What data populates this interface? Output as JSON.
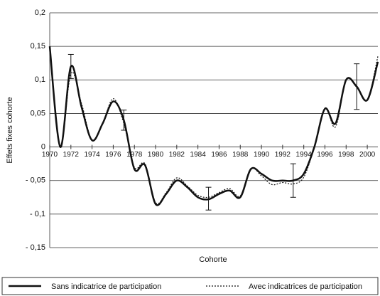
{
  "chart_data": {
    "type": "line",
    "y_label": "Effets fixes cohorte",
    "x_label": "Cohorte",
    "xlim": [
      1970,
      2001
    ],
    "xticks": [
      1970,
      1972,
      1974,
      1976,
      1978,
      1980,
      1982,
      1984,
      1986,
      1988,
      1990,
      1992,
      1994,
      1996,
      1998,
      2000
    ],
    "ylim": [
      -0.15,
      0.2
    ],
    "yticks": [
      {
        "value": -0.15,
        "label": "- 0,15"
      },
      {
        "value": -0.1,
        "label": "- 0,1"
      },
      {
        "value": -0.05,
        "label": "- 0,05"
      },
      0,
      {
        "value": 0.05,
        "label": "0,05"
      },
      {
        "value": 0.1,
        "label": "0,1"
      },
      {
        "value": 0.15,
        "label": "0,15"
      },
      {
        "value": 0.2,
        "label": "0,2"
      }
    ],
    "grid": true,
    "legend_position": "bottom",
    "x": [
      1970,
      1971,
      1972,
      1973,
      1974,
      1975,
      1976,
      1977,
      1978,
      1979,
      1980,
      1981,
      1982,
      1983,
      1984,
      1985,
      1986,
      1987,
      1988,
      1989,
      1990,
      1991,
      1992,
      1993,
      1994,
      1995,
      1996,
      1997,
      1998,
      1999,
      2000,
      2001
    ],
    "series": [
      {
        "name": "Sans indicatrice de participation",
        "color": "#111111",
        "dash": "solid",
        "values": [
          0.15,
          0.0,
          0.12,
          0.06,
          0.01,
          0.035,
          0.068,
          0.04,
          -0.033,
          -0.027,
          -0.085,
          -0.07,
          -0.05,
          -0.06,
          -0.075,
          -0.078,
          -0.07,
          -0.065,
          -0.075,
          -0.033,
          -0.04,
          -0.05,
          -0.05,
          -0.05,
          -0.04,
          0.0,
          0.057,
          0.035,
          0.1,
          0.09,
          0.07,
          0.127
        ]
      },
      {
        "name": "Avec indicatrices de participation",
        "color": "#111111",
        "dash": "dotted",
        "values": [
          0.15,
          0.0,
          0.11,
          0.065,
          0.01,
          0.035,
          0.072,
          0.035,
          -0.03,
          -0.025,
          -0.083,
          -0.068,
          -0.046,
          -0.058,
          -0.072,
          -0.075,
          -0.068,
          -0.062,
          -0.073,
          -0.032,
          -0.043,
          -0.056,
          -0.053,
          -0.055,
          -0.045,
          0.0,
          0.058,
          0.03,
          0.1,
          0.09,
          0.07,
          0.135
        ]
      }
    ],
    "error_bars": [
      {
        "x": 1972,
        "value": 0.12,
        "error": 0.018
      },
      {
        "x": 1977,
        "value": 0.04,
        "error": 0.015
      },
      {
        "x": 1985,
        "value": -0.077,
        "error": 0.017
      },
      {
        "x": 1993,
        "value": -0.05,
        "error": 0.025
      },
      {
        "x": 1999,
        "value": 0.09,
        "error": 0.034
      }
    ]
  }
}
